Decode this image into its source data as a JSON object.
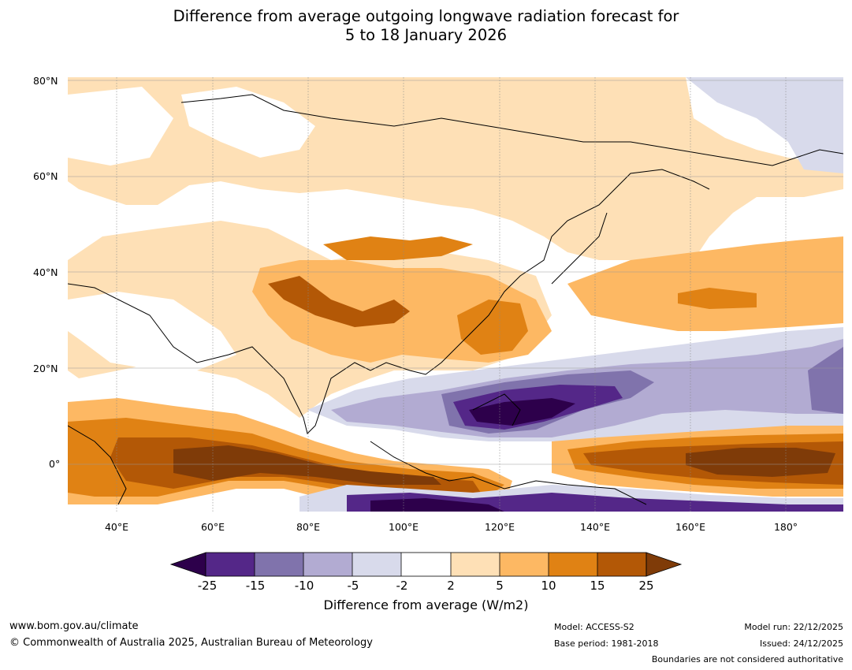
{
  "title": {
    "line1": "Difference from average outgoing longwave radiation forecast for",
    "line2": "5 to 18 January 2026"
  },
  "map": {
    "lat_labels": [
      "80°N",
      "60°N",
      "40°N",
      "20°N",
      "0°"
    ],
    "lon_labels": [
      "40°E",
      "60°E",
      "80°E",
      "100°E",
      "120°E",
      "140°E",
      "160°E",
      "180°"
    ],
    "lon_range": [
      30,
      192
    ],
    "lat_range": [
      -10,
      80
    ],
    "colors": {
      "neg25": "#2d004b",
      "neg15": "#542788",
      "neg10": "#8073ac",
      "neg5": "#b2abd2",
      "neg2": "#d8daeb",
      "zero": "#ffffff",
      "pos2": "#fee0b6",
      "pos5": "#fdb863",
      "pos10": "#e08214",
      "pos15": "#b35806",
      "pos25": "#7f3b08"
    }
  },
  "colorbar": {
    "ticks": [
      "-25",
      "-15",
      "-10",
      "-5",
      "-2",
      "2",
      "5",
      "10",
      "15",
      "25"
    ],
    "label": "Difference from average (W/m2)"
  },
  "footer": {
    "website": "www.bom.gov.au/climate",
    "copyright": "© Commonwealth of Australia 2025, Australian Bureau of Meteorology",
    "model": "Model: ACCESS-S2",
    "base_period": "Base period: 1981-2018",
    "model_run": "Model run: 22/12/2025",
    "issued": "Issued: 24/12/2025",
    "disclaimer": "Boundaries are not considered authoritative"
  }
}
